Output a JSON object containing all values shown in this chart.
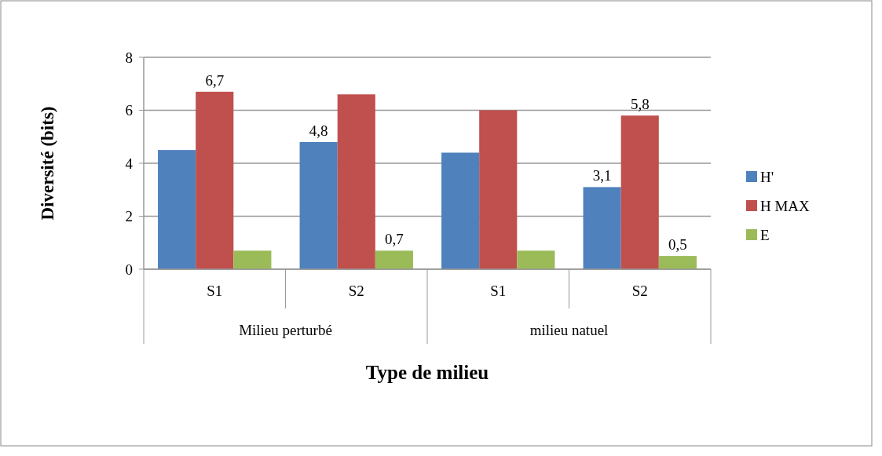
{
  "chart_data": {
    "type": "bar",
    "xlabel": "Type de milieu",
    "ylabel": "Diversité (bits)",
    "categories": [
      "S1",
      "S2",
      "S1",
      "S2"
    ],
    "annotations": [
      "Milieu perturbé",
      "milieu natuel"
    ],
    "series": [
      {
        "name": "H'",
        "color": "#4f81bd",
        "values": [
          4.5,
          4.8,
          4.4,
          3.1
        ],
        "value_labels": [
          null,
          "4,8",
          null,
          "3,1"
        ]
      },
      {
        "name": "H MAX",
        "color": "#c0504d",
        "values": [
          6.7,
          6.6,
          6.0,
          5.8
        ],
        "value_labels": [
          "6,7",
          null,
          null,
          "5,8"
        ]
      },
      {
        "name": "E",
        "color": "#9bbb59",
        "values": [
          0.7,
          0.7,
          0.7,
          0.5
        ],
        "value_labels": [
          null,
          "0,7",
          null,
          "0,5"
        ]
      }
    ],
    "ylim": [
      0,
      8
    ],
    "yticks": [
      0,
      2,
      4,
      6,
      8
    ],
    "grid": "y",
    "legend": "right"
  }
}
